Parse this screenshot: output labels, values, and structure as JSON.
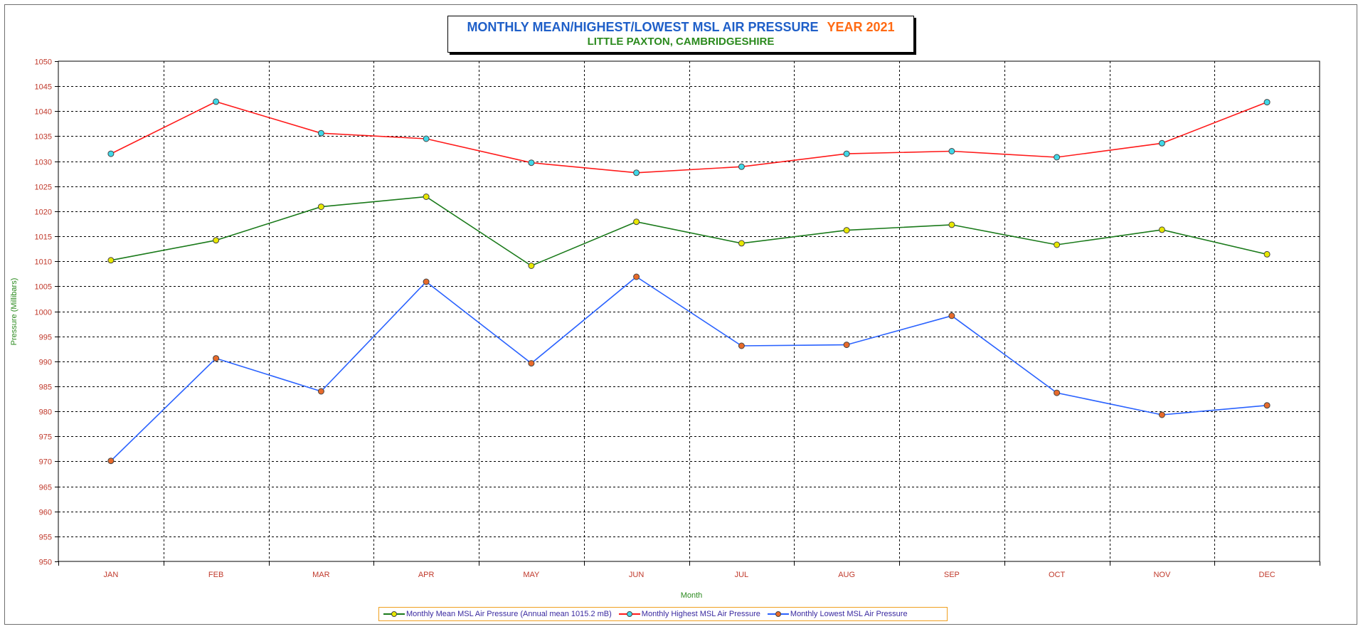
{
  "chart_data": {
    "type": "line",
    "title": "MONTHLY MEAN/HIGHEST/LOWEST MSL AIR PRESSURE",
    "title_year": "YEAR 2021",
    "subtitle": "LITTLE PAXTON, CAMBRIDGESHIRE",
    "xlabel": "Month",
    "ylabel": "Pressure (Millibars)",
    "categories": [
      "JAN",
      "FEB",
      "MAR",
      "APR",
      "MAY",
      "JUN",
      "JUL",
      "AUG",
      "SEP",
      "OCT",
      "NOV",
      "DEC"
    ],
    "ylim": [
      950,
      1050
    ],
    "ytick_step": 5,
    "grid": true,
    "legend_position": "bottom",
    "series": [
      {
        "name": "Monthly Mean MSL Air Pressure (Annual mean 1015.2 mB)",
        "color": "#1a7a1a",
        "marker_color": "#e8e800",
        "values": [
          1010.2,
          1014.2,
          1020.9,
          1022.9,
          1009.1,
          1017.9,
          1013.6,
          1016.2,
          1017.3,
          1013.3,
          1016.3,
          1011.4
        ]
      },
      {
        "name": "Monthly Highest MSL Air Pressure",
        "color": "#ff1a1a",
        "marker_color": "#40d8e8",
        "values": [
          1031.5,
          1041.9,
          1035.6,
          1034.5,
          1029.7,
          1027.7,
          1028.9,
          1031.5,
          1032.0,
          1030.8,
          1033.6,
          1041.8
        ]
      },
      {
        "name": "Monthly Lowest MSL Air Pressure",
        "color": "#2a62ff",
        "marker_color": "#e86a2a",
        "values": [
          970.1,
          990.6,
          984.0,
          1005.9,
          989.6,
          1006.9,
          993.1,
          993.3,
          999.1,
          983.7,
          979.3,
          981.2
        ]
      }
    ]
  },
  "colors": {
    "title_blue": "#1f5fc8",
    "year_orange": "#ff6a13",
    "subtitle_green": "#2b8a1e",
    "tick_label_red": "#c0392b",
    "axis_title_green": "#2b8a1e",
    "legend_text": "#3a2aa0",
    "legend_border": "#f0a020"
  }
}
